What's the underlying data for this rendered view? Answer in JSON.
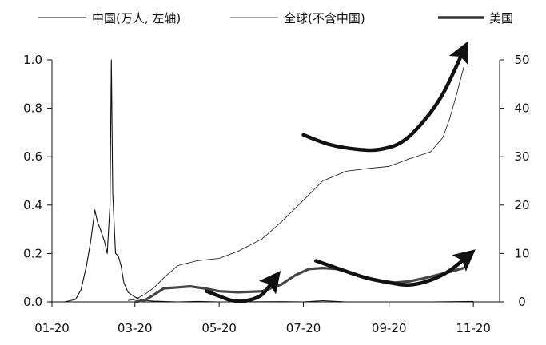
{
  "chart_data": {
    "type": "line",
    "x_start": "2020-01-01",
    "x_end": "2020-11-20",
    "x_tick_labels": [
      "01-20",
      "03-20",
      "05-20",
      "07-20",
      "09-20",
      "11-20"
    ],
    "x_tick_dates": [
      "2020-01-01",
      "2020-03-01",
      "2020-05-01",
      "2020-07-01",
      "2020-09-01",
      "2020-11-01"
    ],
    "y_left": {
      "range": [
        0,
        1.0
      ],
      "ticks": [
        0.0,
        0.2,
        0.4,
        0.6,
        0.8,
        1.0
      ],
      "tick_labels": [
        "0.0",
        "0.2",
        "0.4",
        "0.6",
        "0.8",
        "1.0"
      ]
    },
    "y_right": {
      "range": [
        0,
        50
      ],
      "ticks": [
        0,
        10,
        20,
        30,
        40,
        50
      ],
      "tick_labels": [
        "0",
        "10",
        "20",
        "30",
        "40",
        "50"
      ]
    },
    "legend": [
      "中国(万人, 左轴)",
      "全球(不含中国)",
      "美国"
    ],
    "legend_position": "top",
    "grid": false,
    "series": [
      {
        "name": "中国(万人, 左轴)",
        "axis": "left",
        "x": [
          "2020-01-10",
          "2020-01-18",
          "2020-01-22",
          "2020-01-26",
          "2020-01-29",
          "2020-02-01",
          "2020-02-03",
          "2020-02-05",
          "2020-02-08",
          "2020-02-10",
          "2020-02-12",
          "2020-02-13",
          "2020-02-14",
          "2020-02-16",
          "2020-02-18",
          "2020-02-20",
          "2020-02-22",
          "2020-02-25",
          "2020-03-01",
          "2020-03-05",
          "2020-03-10",
          "2020-03-15",
          "2020-04-01",
          "2020-04-15",
          "2020-05-01",
          "2020-06-15",
          "2020-07-01",
          "2020-07-15",
          "2020-08-01",
          "2020-09-01",
          "2020-10-01",
          "2020-11-01"
        ],
        "values": [
          0.0,
          0.01,
          0.05,
          0.15,
          0.25,
          0.38,
          0.33,
          0.3,
          0.25,
          0.2,
          0.4,
          1.0,
          0.45,
          0.2,
          0.19,
          0.15,
          0.08,
          0.04,
          0.02,
          0.01,
          0.005,
          0.003,
          0.0,
          0.002,
          0.0,
          0.001,
          0.0,
          0.005,
          0.0,
          0.0,
          0.0,
          0.002
        ]
      },
      {
        "name": "全球(不含中国)",
        "axis": "right",
        "x": [
          "2020-02-25",
          "2020-03-01",
          "2020-03-08",
          "2020-03-15",
          "2020-03-22",
          "2020-04-01",
          "2020-04-15",
          "2020-05-01",
          "2020-05-15",
          "2020-06-01",
          "2020-06-15",
          "2020-07-01",
          "2020-07-15",
          "2020-08-01",
          "2020-08-15",
          "2020-09-01",
          "2020-09-15",
          "2020-10-01",
          "2020-10-10",
          "2020-10-15",
          "2020-10-20",
          "2020-10-25"
        ],
        "values": [
          0.3,
          0.5,
          1.5,
          3.0,
          5.0,
          7.5,
          8.5,
          9.0,
          10.5,
          13.0,
          16.5,
          21.0,
          25.0,
          27.0,
          27.5,
          28.0,
          29.5,
          31.0,
          34.0,
          38.0,
          43.0,
          48.5
        ]
      },
      {
        "name": "美国",
        "axis": "right",
        "x": [
          "2020-03-01",
          "2020-03-08",
          "2020-03-15",
          "2020-03-22",
          "2020-04-01",
          "2020-04-10",
          "2020-04-20",
          "2020-05-01",
          "2020-05-15",
          "2020-06-01",
          "2020-06-15",
          "2020-06-25",
          "2020-07-05",
          "2020-07-15",
          "2020-07-25",
          "2020-08-05",
          "2020-08-15",
          "2020-08-25",
          "2020-09-05",
          "2020-09-15",
          "2020-09-25",
          "2020-10-05",
          "2020-10-15",
          "2020-10-25"
        ],
        "values": [
          0.0,
          0.3,
          1.5,
          2.8,
          3.0,
          3.2,
          2.8,
          2.2,
          2.0,
          2.2,
          3.6,
          5.5,
          6.8,
          7.0,
          6.8,
          6.0,
          5.0,
          4.4,
          4.0,
          4.2,
          4.8,
          5.5,
          6.2,
          7.0
        ]
      }
    ],
    "annotations": [
      {
        "type": "trend-arrow",
        "axis": "right",
        "x": [
          "2020-04-22",
          "2020-05-01",
          "2020-05-10",
          "2020-05-20",
          "2020-06-01",
          "2020-06-10"
        ],
        "values": [
          2.2,
          1.2,
          0.3,
          0.2,
          1.5,
          4.8
        ]
      },
      {
        "type": "trend-arrow",
        "axis": "right",
        "x": [
          "2020-07-01",
          "2020-07-20",
          "2020-08-10",
          "2020-08-25",
          "2020-09-10",
          "2020-09-25",
          "2020-10-10",
          "2020-10-25"
        ],
        "values": [
          34.5,
          32.5,
          31.5,
          31.5,
          33.0,
          37.0,
          43.0,
          52.0
        ]
      },
      {
        "type": "trend-arrow",
        "axis": "right",
        "x": [
          "2020-07-10",
          "2020-07-25",
          "2020-08-15",
          "2020-09-01",
          "2020-09-15",
          "2020-10-01",
          "2020-10-15",
          "2020-10-28"
        ],
        "values": [
          8.5,
          7.0,
          5.0,
          4.0,
          3.5,
          4.5,
          6.5,
          9.5
        ]
      }
    ]
  }
}
